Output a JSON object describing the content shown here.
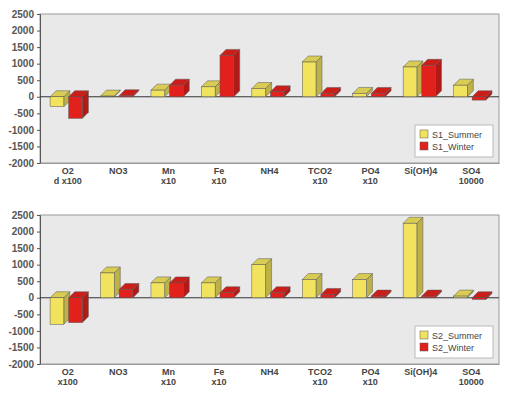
{
  "chart_data": [
    {
      "type": "bar",
      "categories": [
        "O2\nd x100",
        "NO3",
        "Mn\nx10",
        "Fe\nx10",
        "NH4",
        "TCO2\nx10",
        "PO4\nx10",
        "Si(OH)4",
        "SO4\n10000"
      ],
      "series": [
        {
          "name": "S1_Summer",
          "color": "#f2e35e",
          "values": [
            -300,
            20,
            200,
            300,
            250,
            1050,
            100,
            900,
            350
          ]
        },
        {
          "name": "S1_Winter",
          "color": "#e3211c",
          "values": [
            -650,
            30,
            350,
            1250,
            150,
            100,
            100,
            950,
            -100
          ]
        }
      ],
      "ylim": [
        -2000,
        2500
      ],
      "yticks": [
        -2000,
        -1500,
        -1000,
        -500,
        0,
        500,
        1000,
        1500,
        2000,
        2500
      ],
      "grid": false,
      "legend": "lower right"
    },
    {
      "type": "bar",
      "categories": [
        "O2\nx100",
        "NO3",
        "Mn\nx10",
        "Fe\nx10",
        "NH4",
        "TCO2\nx10",
        "PO4\nx10",
        "Si(OH)4",
        "SO4\n10000"
      ],
      "series": [
        {
          "name": "S2_Summer",
          "color": "#f2e35e",
          "values": [
            -800,
            750,
            450,
            450,
            1000,
            550,
            550,
            2250,
            50
          ]
        },
        {
          "name": "S2_Winter",
          "color": "#e3211c",
          "values": [
            -750,
            250,
            450,
            150,
            150,
            100,
            50,
            50,
            -50
          ]
        }
      ],
      "ylim": [
        -2000,
        2500
      ],
      "yticks": [
        -2000,
        -1500,
        -1000,
        -500,
        0,
        500,
        1000,
        1500,
        2000,
        2500
      ],
      "grid": false,
      "legend": "lower right"
    }
  ]
}
